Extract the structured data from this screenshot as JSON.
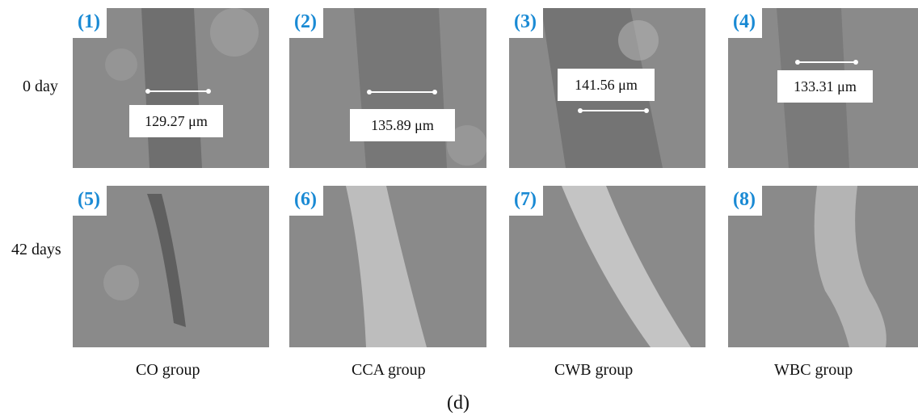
{
  "rows": [
    "0 day",
    "42 days"
  ],
  "columns": [
    "CO group",
    "CCA group",
    "CWB group",
    "WBC group"
  ],
  "panels": [
    {
      "label": "(1)",
      "measurement": "129.27 μm"
    },
    {
      "label": "(2)",
      "measurement": "135.89 μm"
    },
    {
      "label": "(3)",
      "measurement": "141.56 μm"
    },
    {
      "label": "(4)",
      "measurement": "133.31 μm"
    },
    {
      "label": "(5)"
    },
    {
      "label": "(6)"
    },
    {
      "label": "(7)"
    },
    {
      "label": "(8)"
    }
  ],
  "caption": "(d)"
}
